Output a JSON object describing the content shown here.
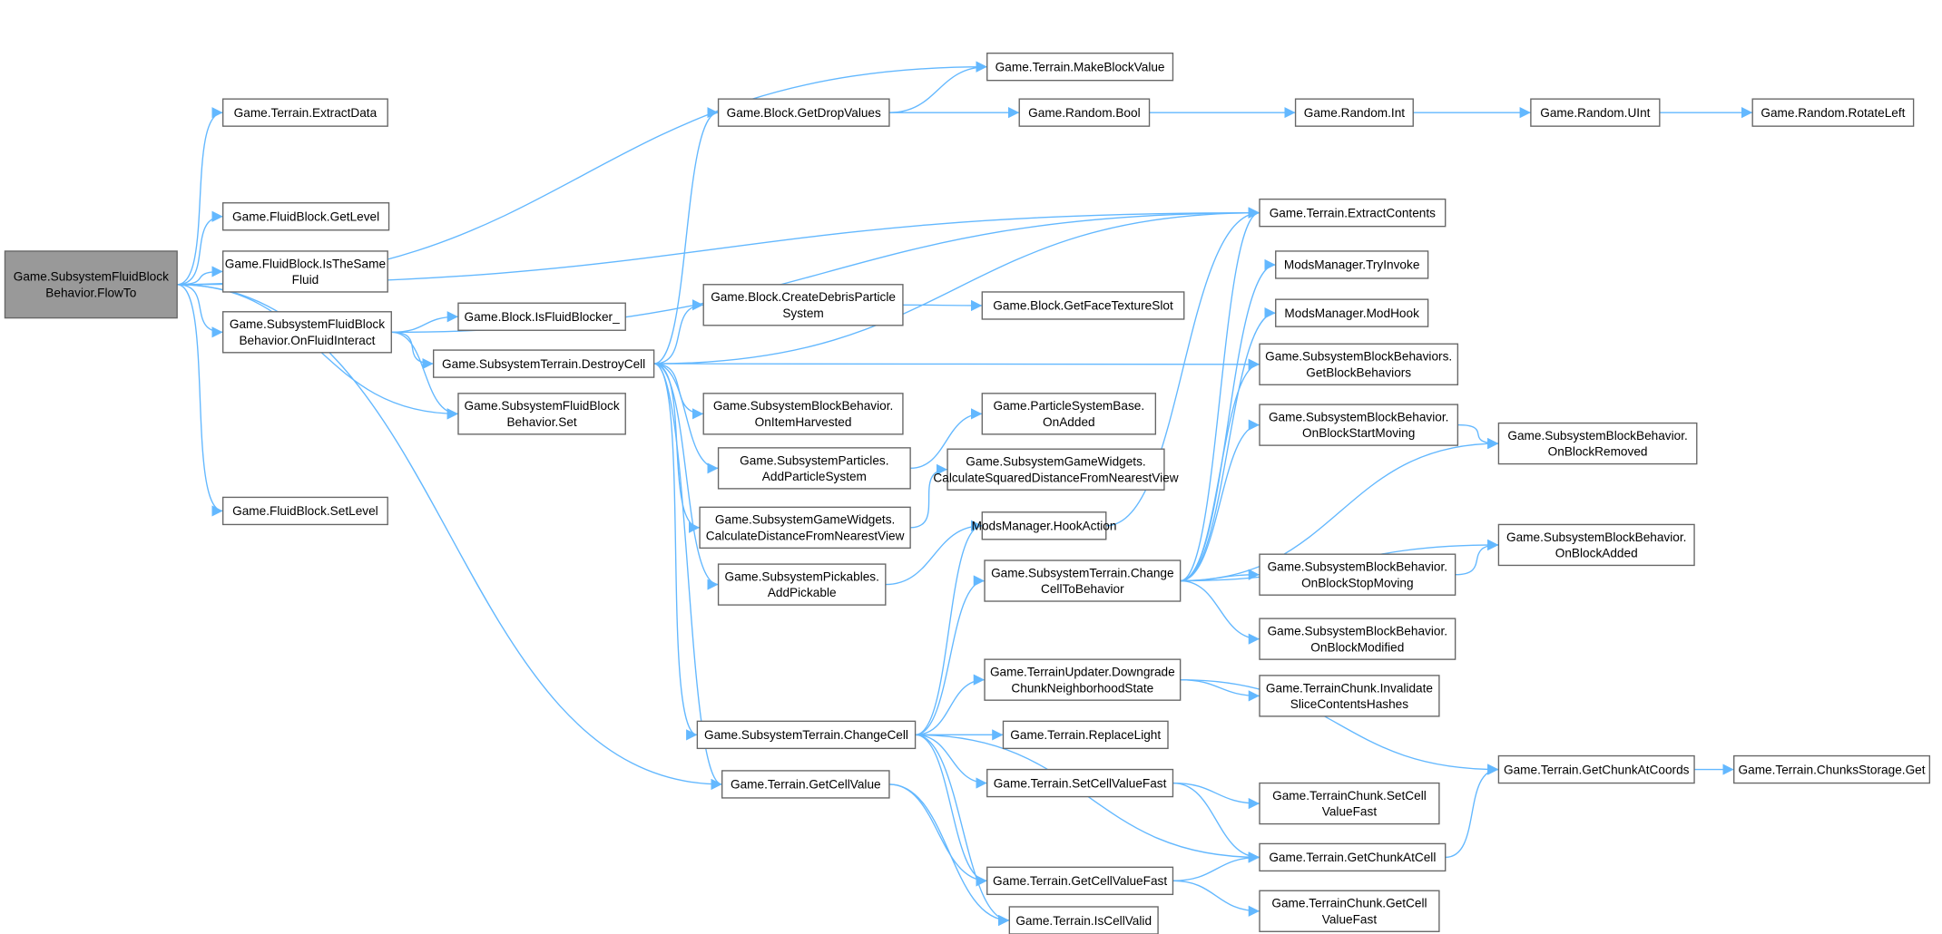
{
  "colors": {
    "edge": "#63b8ff",
    "node_border": "#666666",
    "root_fill": "#999999",
    "node_fill": "#ffffff"
  },
  "root": "flowto",
  "nodes": [
    {
      "id": "flowto",
      "lines": [
        "Game.SubsystemFluidBlock",
        "Behavior.FlowTo"
      ]
    },
    {
      "id": "extractdata",
      "lines": [
        "Game.Terrain.ExtractData"
      ]
    },
    {
      "id": "getlevel",
      "lines": [
        "Game.FluidBlock.GetLevel"
      ]
    },
    {
      "id": "isthesame",
      "lines": [
        "Game.FluidBlock.IsTheSame",
        "Fluid"
      ]
    },
    {
      "id": "onfluidinteract",
      "lines": [
        "Game.SubsystemFluidBlock",
        "Behavior.OnFluidInteract"
      ]
    },
    {
      "id": "setlevel",
      "lines": [
        "Game.FluidBlock.SetLevel"
      ]
    },
    {
      "id": "isfluidblocker",
      "lines": [
        "Game.Block.IsFluidBlocker_"
      ]
    },
    {
      "id": "destroycell",
      "lines": [
        "Game.SubsystemTerrain.DestroyCell"
      ]
    },
    {
      "id": "fluidset",
      "lines": [
        "Game.SubsystemFluidBlock",
        "Behavior.Set"
      ]
    },
    {
      "id": "getdropvalues",
      "lines": [
        "Game.Block.GetDropValues"
      ]
    },
    {
      "id": "createdebris",
      "lines": [
        "Game.Block.CreateDebrisParticle",
        "System"
      ]
    },
    {
      "id": "onitemharvested",
      "lines": [
        "Game.SubsystemBlockBehavior.",
        "OnItemHarvested"
      ]
    },
    {
      "id": "addparticlesystem",
      "lines": [
        "Game.SubsystemParticles.",
        "AddParticleSystem"
      ]
    },
    {
      "id": "calcdistance",
      "lines": [
        "Game.SubsystemGameWidgets.",
        "CalculateDistanceFromNearestView"
      ]
    },
    {
      "id": "addpickable",
      "lines": [
        "Game.SubsystemPickables.",
        "AddPickable"
      ]
    },
    {
      "id": "changecell",
      "lines": [
        "Game.SubsystemTerrain.ChangeCell"
      ]
    },
    {
      "id": "getcellvalue",
      "lines": [
        "Game.Terrain.GetCellValue"
      ]
    },
    {
      "id": "makeblockvalue",
      "lines": [
        "Game.Terrain.MakeBlockValue"
      ]
    },
    {
      "id": "randombool",
      "lines": [
        "Game.Random.Bool"
      ]
    },
    {
      "id": "randomint",
      "lines": [
        "Game.Random.Int"
      ]
    },
    {
      "id": "randomuint",
      "lines": [
        "Game.Random.UInt"
      ]
    },
    {
      "id": "rotateleft",
      "lines": [
        "Game.Random.RotateLeft"
      ]
    },
    {
      "id": "extractcontents",
      "lines": [
        "Game.Terrain.ExtractContents"
      ]
    },
    {
      "id": "getfacetextureslot",
      "lines": [
        "Game.Block.GetFaceTextureSlot"
      ]
    },
    {
      "id": "tryinvoke",
      "lines": [
        "ModsManager.TryInvoke"
      ]
    },
    {
      "id": "modhook",
      "lines": [
        "ModsManager.ModHook"
      ]
    },
    {
      "id": "getblockbehaviors",
      "lines": [
        "Game.SubsystemBlockBehaviors.",
        "GetBlockBehaviors"
      ]
    },
    {
      "id": "psbonadded",
      "lines": [
        "Game.ParticleSystemBase.",
        "OnAdded"
      ]
    },
    {
      "id": "calcsquared",
      "lines": [
        "Game.SubsystemGameWidgets.",
        "CalculateSquaredDistanceFromNearestView"
      ]
    },
    {
      "id": "hookaction",
      "lines": [
        "ModsManager.HookAction"
      ]
    },
    {
      "id": "onblockstartmoving",
      "lines": [
        "Game.SubsystemBlockBehavior.",
        "OnBlockStartMoving"
      ]
    },
    {
      "id": "onblockremoved",
      "lines": [
        "Game.SubsystemBlockBehavior.",
        "OnBlockRemoved"
      ]
    },
    {
      "id": "changecelltobehavior",
      "lines": [
        "Game.SubsystemTerrain.Change",
        "CellToBehavior"
      ]
    },
    {
      "id": "onblockadded",
      "lines": [
        "Game.SubsystemBlockBehavior.",
        "OnBlockAdded"
      ]
    },
    {
      "id": "onblockstopmoving",
      "lines": [
        "Game.SubsystemBlockBehavior.",
        "OnBlockStopMoving"
      ]
    },
    {
      "id": "onblockmodified",
      "lines": [
        "Game.SubsystemBlockBehavior.",
        "OnBlockModified"
      ]
    },
    {
      "id": "downgrade",
      "lines": [
        "Game.TerrainUpdater.Downgrade",
        "ChunkNeighborhoodState"
      ]
    },
    {
      "id": "invalidate",
      "lines": [
        "Game.TerrainChunk.Invalidate",
        "SliceContentsHashes"
      ]
    },
    {
      "id": "replacelight",
      "lines": [
        "Game.Terrain.ReplaceLight"
      ]
    },
    {
      "id": "setcellvaluefast",
      "lines": [
        "Game.Terrain.SetCellValueFast"
      ]
    },
    {
      "id": "chunksetcellvaluefast",
      "lines": [
        "Game.TerrainChunk.SetCell",
        "ValueFast"
      ]
    },
    {
      "id": "getchunkatcoords",
      "lines": [
        "Game.Terrain.GetChunkAtCoords"
      ]
    },
    {
      "id": "chunksstorageget",
      "lines": [
        "Game.Terrain.ChunksStorage.Get"
      ]
    },
    {
      "id": "getchunkatcell",
      "lines": [
        "Game.Terrain.GetChunkAtCell"
      ]
    },
    {
      "id": "getcellvaluefast",
      "lines": [
        "Game.Terrain.GetCellValueFast"
      ]
    },
    {
      "id": "chunkgetcellvaluefast",
      "lines": [
        "Game.TerrainChunk.GetCell",
        "ValueFast"
      ]
    },
    {
      "id": "iscellvalid",
      "lines": [
        "Game.Terrain.IsCellValid"
      ]
    }
  ],
  "edges": [
    [
      "flowto",
      "makeblockvalue"
    ],
    [
      "flowto",
      "extractdata"
    ],
    [
      "flowto",
      "extractcontents"
    ],
    [
      "flowto",
      "getlevel"
    ],
    [
      "flowto",
      "isthesame"
    ],
    [
      "flowto",
      "onfluidinteract"
    ],
    [
      "flowto",
      "fluidset"
    ],
    [
      "flowto",
      "setlevel"
    ],
    [
      "flowto",
      "getcellvalue"
    ],
    [
      "onfluidinteract",
      "extractcontents"
    ],
    [
      "onfluidinteract",
      "isfluidblocker"
    ],
    [
      "onfluidinteract",
      "destroycell"
    ],
    [
      "onfluidinteract",
      "fluidset"
    ],
    [
      "destroycell",
      "getdropvalues"
    ],
    [
      "destroycell",
      "extractcontents"
    ],
    [
      "destroycell",
      "createdebris"
    ],
    [
      "destroycell",
      "getblockbehaviors"
    ],
    [
      "destroycell",
      "onitemharvested"
    ],
    [
      "destroycell",
      "addparticlesystem"
    ],
    [
      "destroycell",
      "calcdistance"
    ],
    [
      "destroycell",
      "addpickable"
    ],
    [
      "destroycell",
      "changecell"
    ],
    [
      "destroycell",
      "getcellvalue"
    ],
    [
      "getdropvalues",
      "makeblockvalue"
    ],
    [
      "getdropvalues",
      "randombool"
    ],
    [
      "randombool",
      "randomint"
    ],
    [
      "randomint",
      "randomuint"
    ],
    [
      "randomuint",
      "rotateleft"
    ],
    [
      "createdebris",
      "getfacetextureslot"
    ],
    [
      "addparticlesystem",
      "psbonadded"
    ],
    [
      "calcdistance",
      "calcsquared"
    ],
    [
      "addpickable",
      "hookaction"
    ],
    [
      "hookaction",
      "extractcontents"
    ],
    [
      "changecell",
      "hookaction"
    ],
    [
      "changecell",
      "changecelltobehavior"
    ],
    [
      "changecell",
      "downgrade"
    ],
    [
      "changecell",
      "replacelight"
    ],
    [
      "changecell",
      "setcellvaluefast"
    ],
    [
      "changecell",
      "getchunkatcell"
    ],
    [
      "changecell",
      "getcellvaluefast"
    ],
    [
      "changecell",
      "iscellvalid"
    ],
    [
      "changecelltobehavior",
      "extractcontents"
    ],
    [
      "changecelltobehavior",
      "tryinvoke"
    ],
    [
      "changecelltobehavior",
      "modhook"
    ],
    [
      "changecelltobehavior",
      "getblockbehaviors"
    ],
    [
      "changecelltobehavior",
      "onblockstartmoving"
    ],
    [
      "changecelltobehavior",
      "onblockremoved"
    ],
    [
      "changecelltobehavior",
      "onblockadded"
    ],
    [
      "changecelltobehavior",
      "onblockstopmoving"
    ],
    [
      "changecelltobehavior",
      "onblockmodified"
    ],
    [
      "onblockstartmoving",
      "onblockremoved"
    ],
    [
      "onblockstopmoving",
      "onblockadded"
    ],
    [
      "downgrade",
      "invalidate"
    ],
    [
      "downgrade",
      "getchunkatcoords"
    ],
    [
      "setcellvaluefast",
      "chunksetcellvaluefast"
    ],
    [
      "setcellvaluefast",
      "getchunkatcell"
    ],
    [
      "getchunkatcell",
      "getchunkatcoords"
    ],
    [
      "getchunkatcoords",
      "chunksstorageget"
    ],
    [
      "getcellvalue",
      "getcellvaluefast"
    ],
    [
      "getcellvalue",
      "iscellvalid"
    ],
    [
      "getcellvaluefast",
      "getchunkatcell"
    ],
    [
      "getcellvaluefast",
      "chunkgetcellvaluefast"
    ]
  ]
}
